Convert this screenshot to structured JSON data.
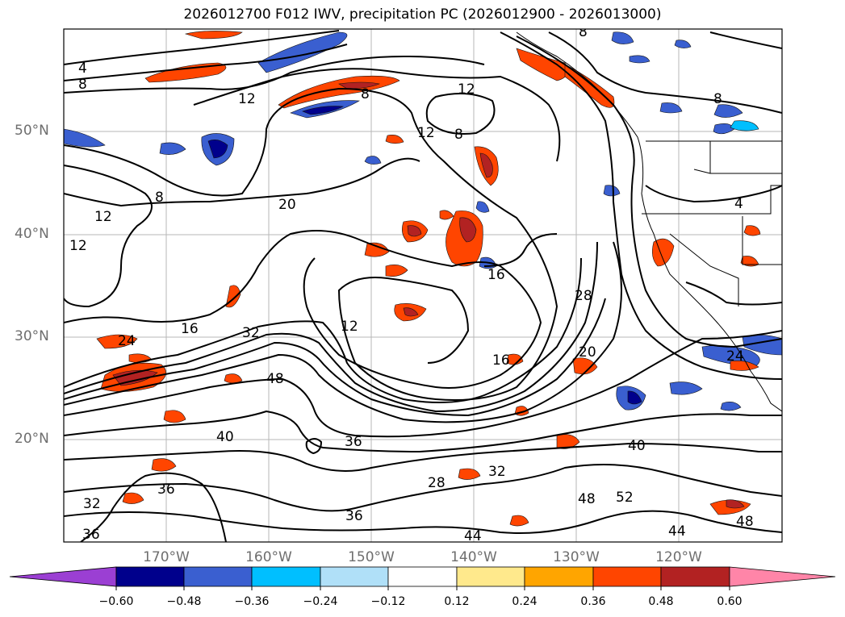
{
  "title": "2026012700 F012 IWV, precipitation PC (2026012900 - 2026013000)",
  "map": {
    "lat_labels": [
      "50°N",
      "40°N",
      "30°N",
      "20°N"
    ],
    "lon_labels": [
      "170°W",
      "160°W",
      "150°W",
      "140°W",
      "130°W",
      "120°W"
    ],
    "contour_labels": [
      "4",
      "8",
      "12",
      "8",
      "8",
      "12",
      "12",
      "8",
      "20",
      "12",
      "12",
      "16",
      "12",
      "16",
      "32",
      "16",
      "28",
      "20",
      "48",
      "40",
      "36",
      "36",
      "32",
      "28",
      "32",
      "40",
      "48",
      "52",
      "36",
      "44",
      "44",
      "48",
      "36",
      "8",
      "4",
      "8",
      "24",
      "24"
    ]
  },
  "colorbar": {
    "ticks": [
      "−0.60",
      "−0.48",
      "−0.36",
      "−0.24",
      "−0.12",
      "0.12",
      "0.24",
      "0.36",
      "0.48",
      "0.60"
    ],
    "colors": [
      "#9b3fd3",
      "#00008c",
      "#3a5fd0",
      "#00bfff",
      "#b0e0f8",
      "#ffffff",
      "#ffe98c",
      "#ffa500",
      "#ff4500",
      "#b22222",
      "#ff85a8"
    ]
  }
}
